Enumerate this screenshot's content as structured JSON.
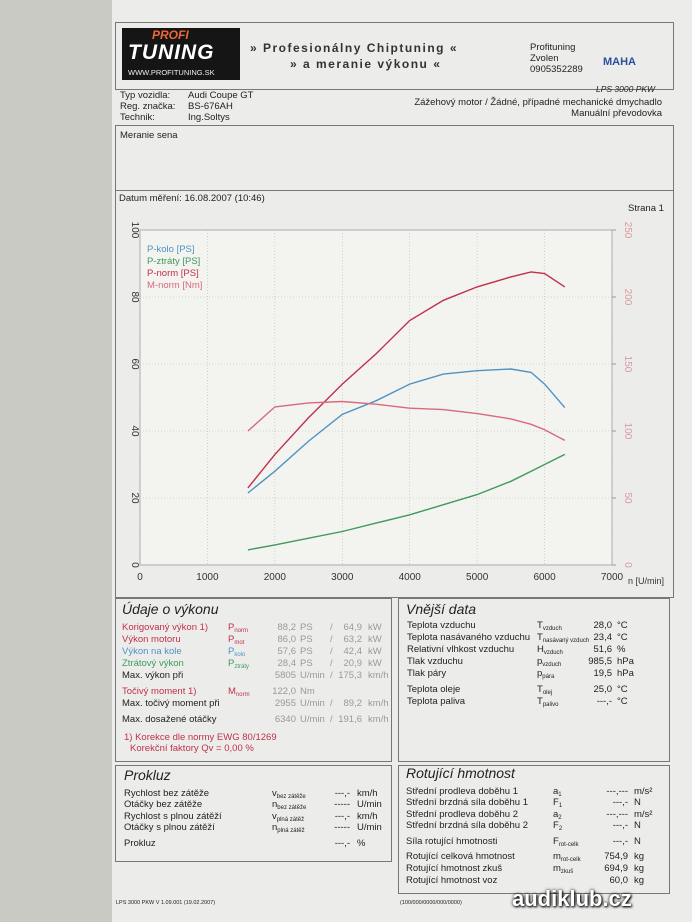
{
  "header": {
    "logo_top": "PROFI",
    "logo_main": "TUNING",
    "logo_url": "WWW.PROFITUNING.SK",
    "title_1": "» Profesionálny Chiptuning «",
    "title_2": "» a meranie výkonu «",
    "contact": [
      "Profituning",
      "Zvolen",
      "0905352289"
    ],
    "maha": "MAHA",
    "model": "LPS 3000 PKW"
  },
  "vehicle": {
    "rows": [
      [
        "Typ vozidla:",
        "Audi Coupe GT"
      ],
      [
        "Reg. značka:",
        "BS-676AH"
      ],
      [
        "Technik:",
        "Ing.Soltys"
      ]
    ],
    "engine": [
      "Zážehový motor / Žádné, případné mechanické dmychadlo",
      "Manuální převodovka"
    ],
    "note": "Meranie sena",
    "date": "Datum měření: 16.08.2007 (10:46)",
    "page": "Strana 1"
  },
  "chart_data": {
    "type": "line",
    "x_label": "n [U/min]",
    "x": [
      1600,
      2000,
      2500,
      3000,
      3500,
      4000,
      4500,
      5000,
      5500,
      5800,
      6000,
      6300
    ],
    "xlim": [
      0,
      7000
    ],
    "xticks": [
      0,
      1000,
      2000,
      3000,
      4000,
      5000,
      6000,
      7000
    ],
    "ylim": [
      0,
      100
    ],
    "yticks": [
      0,
      20,
      40,
      60,
      80,
      100
    ],
    "y2lim": [
      0,
      250
    ],
    "y2ticks": [
      0,
      50,
      100,
      150,
      200,
      250
    ],
    "grid": true,
    "series": [
      {
        "name": "P-kolo [PS]",
        "color": "#4f93c4",
        "values": [
          21.5,
          28,
          37,
          45,
          49,
          54,
          57,
          58,
          58.5,
          57.5,
          54,
          47
        ]
      },
      {
        "name": "P-ztráty [PS]",
        "color": "#3f9a5c",
        "values": [
          4.5,
          6,
          8,
          10,
          12.5,
          15,
          18,
          21,
          25,
          28,
          30,
          33
        ]
      },
      {
        "name": "P-norm [PS]",
        "color": "#c0304a",
        "values": [
          23,
          33,
          44,
          54,
          63,
          73,
          79,
          83,
          86,
          87.5,
          87,
          83
        ]
      },
      {
        "name": "M-norm [Nm]",
        "color": "#d86a7c",
        "axis": "y2",
        "values": [
          100,
          118,
          121,
          122,
          120,
          117,
          116,
          113,
          109,
          105,
          101,
          93
        ]
      }
    ]
  },
  "performance": {
    "title": "Údaje o výkonu",
    "rows": [
      {
        "label": "Korigovaný výkon 1)",
        "sym": "P",
        "sub": "norm",
        "v1": "88,2",
        "u1": "PS",
        "sep": "/",
        "v2": "64,9",
        "u2": "kW",
        "color": "#c0304a"
      },
      {
        "label": "Výkon motoru",
        "sym": "P",
        "sub": "mot",
        "v1": "86,0",
        "u1": "PS",
        "sep": "/",
        "v2": "63,2",
        "u2": "kW",
        "color": "#c0304a"
      },
      {
        "label": "Výkon na kole",
        "sym": "P",
        "sub": "kolo",
        "v1": "57,6",
        "u1": "PS",
        "sep": "/",
        "v2": "42,4",
        "u2": "kW",
        "color": "#4f93c4"
      },
      {
        "label": "Ztrátový výkon",
        "sym": "P",
        "sub": "ztráty",
        "v1": "28,4",
        "u1": "PS",
        "sep": "/",
        "v2": "20,9",
        "u2": "kW",
        "color": "#3f9a5c"
      },
      {
        "label": "Max. výkon při",
        "v1": "5805",
        "u1": "U/min",
        "sep": "/",
        "v2": "175,3",
        "u2": "km/h",
        "color": "#222222"
      },
      {
        "label": "Točivý moment 1)",
        "sym": "M",
        "sub": "norm",
        "v1": "122,0",
        "u1": "Nm",
        "color": "#c0304a"
      },
      {
        "label": "Max. točivý moment při",
        "v1": "2955",
        "u1": "U/min",
        "sep": "/",
        "v2": "89,2",
        "u2": "km/h",
        "color": "#222222"
      },
      {
        "label": "Max. dosažené otáčky",
        "v1": "6340",
        "u1": "U/min",
        "sep": "/",
        "v2": "191,6",
        "u2": "km/h",
        "color": "#222222"
      }
    ],
    "notes": [
      "1) Korekce dle normy EWG 80/1269",
      "Korekční faktory Qv = 0,00 %"
    ]
  },
  "external": {
    "title": "Vnější data",
    "rows": [
      {
        "label": "Teplota vzduchu",
        "sym": "T",
        "sub": "vzduch",
        "value": "28,0",
        "unit": "°C"
      },
      {
        "label": "Teplota nasávaného vzduchu",
        "sym": "T",
        "sub": "nasávaný vzduch",
        "value": "23,4",
        "unit": "°C"
      },
      {
        "label": "Relativní vlhkost vzduchu",
        "sym": "H",
        "sub": "vzduch",
        "value": "51,6",
        "unit": "%"
      },
      {
        "label": "Tlak vzduchu",
        "sym": "p",
        "sub": "vzduch",
        "value": "985,5",
        "unit": "hPa"
      },
      {
        "label": "Tlak páry",
        "sym": "p",
        "sub": "pára",
        "value": "19,5",
        "unit": "hPa"
      },
      {
        "label": "Teplota oleje",
        "sym": "T",
        "sub": "olej",
        "value": "25,0",
        "unit": "°C"
      },
      {
        "label": "Teplota paliva",
        "sym": "T",
        "sub": "palivo",
        "value": "---,-",
        "unit": "°C"
      }
    ]
  },
  "slip": {
    "title": "Prokluz",
    "rows": [
      {
        "label": "Rychlost bez zátěže",
        "sym": "v",
        "sub": "bez zátěže",
        "value": "---,-",
        "unit": "km/h"
      },
      {
        "label": "Otáčky bez zátěže",
        "sym": "n",
        "sub": "bez zátěže",
        "value": "-----",
        "unit": "U/min"
      },
      {
        "label": "Rychlost s plnou zátěží",
        "sym": "v",
        "sub": "plná zátěž",
        "value": "---,-",
        "unit": "km/h"
      },
      {
        "label": "Otáčky s plnou zátěží",
        "sym": "n",
        "sub": "plná zátěž",
        "value": "-----",
        "unit": "U/min"
      },
      {
        "label": "Prokluz",
        "value": "---,-",
        "unit": "%"
      }
    ]
  },
  "rotating": {
    "title": "Rotující hmotnost",
    "rows": [
      {
        "label": "Střední prodleva doběhu 1",
        "sym": "a",
        "sub": "1",
        "value": "---,---",
        "unit": "m/s²"
      },
      {
        "label": "Střední brzdná síla doběhu 1",
        "sym": "F",
        "sub": "1",
        "value": "---,-",
        "unit": "N"
      },
      {
        "label": "Střední prodleva doběhu 2",
        "sym": "a",
        "sub": "2",
        "value": "---,---",
        "unit": "m/s²"
      },
      {
        "label": "Střední brzdná síla doběhu 2",
        "sym": "F",
        "sub": "2",
        "value": "---,-",
        "unit": "N"
      },
      {
        "label": "Síla rotující hmotnosti",
        "sym": "F",
        "sub": "rot-celk",
        "value": "---,-",
        "unit": "N"
      },
      {
        "label": "Rotující celková hmotnost",
        "sym": "m",
        "sub": "rot-celk",
        "value": "754,9",
        "unit": "kg"
      },
      {
        "label": "Rotující hmotnost zkuš",
        "sym": "m",
        "sub": "zkuš",
        "value": "694,9",
        "unit": "kg"
      },
      {
        "label": "Rotující hmotnost voz",
        "value": "60,0",
        "unit": "kg"
      }
    ]
  },
  "footer": {
    "version": "LPS 3000 PKW V 1.09.001 (19.02.2007)",
    "code": "(100/000/0000/000/0000)"
  },
  "watermark": "audiklub.cz"
}
